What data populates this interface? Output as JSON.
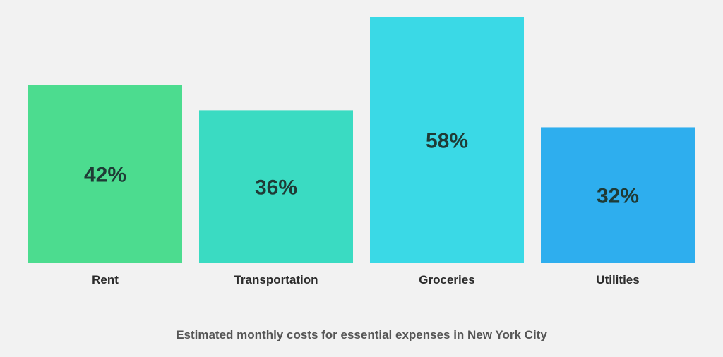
{
  "chart_data": {
    "type": "bar",
    "categories": [
      "Rent",
      "Transportation",
      "Groceries",
      "Utilities"
    ],
    "values": [
      42,
      36,
      58,
      32
    ],
    "value_labels": [
      "42%",
      "36%",
      "58%",
      "32%"
    ],
    "colors": [
      "#4cdc8f",
      "#3adbc2",
      "#3ad9e6",
      "#2eaeee"
    ],
    "ylim": [
      0,
      58
    ],
    "grid": false,
    "legend": "none",
    "caption": "Estimated monthly costs for essential expenses in New York City"
  }
}
